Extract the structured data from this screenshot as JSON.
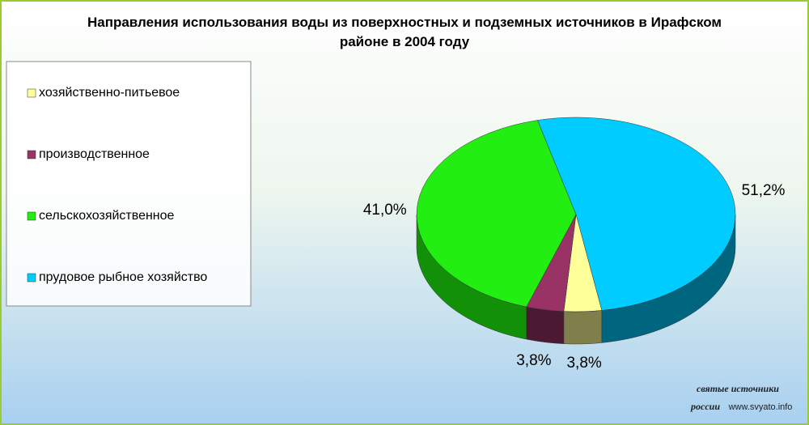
{
  "chart_data": {
    "type": "pie3d",
    "title": "Направления использования воды из поверхностных и подземных источников в Ирафском районе в 2004 году",
    "categories": [
      "хозяйственно-питьевое",
      "производственное",
      "сельскохозяйственное",
      "прудовое рыбное хозяйство"
    ],
    "values": [
      3.8,
      3.8,
      41.0,
      51.2
    ],
    "value_labels": [
      "3,8%",
      "3,8%",
      "41,0%",
      "51,2%"
    ],
    "colors": [
      "#ffff99",
      "#993366",
      "#22ee11",
      "#00ccff"
    ],
    "side_colors": [
      "#7f7f4c",
      "#4c1933",
      "#119008",
      "#006680"
    ],
    "legend": "left"
  },
  "watermark": [
    "святые источники",
    "россии",
    "www.svyato.info"
  ]
}
